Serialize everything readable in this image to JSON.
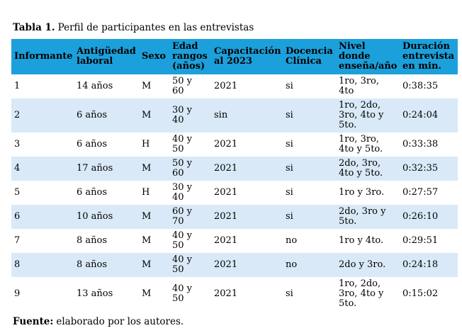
{
  "title": {
    "label": "Tabla 1.",
    "text": "Perfil de participantes en las entrevistas"
  },
  "colors": {
    "header_bg": "#1CA0DB",
    "alt_row_bg": "#D9E9F7",
    "text": "#000000",
    "page_bg": "#FFFFFF"
  },
  "table": {
    "columns": [
      "Informante",
      "Antigüedad\nlaboral",
      "Sexo",
      "Edad\nrangos\n(años)",
      "Capacitación\nal 2023",
      "Docencia\nClínica",
      "Nivel\ndonde\nenseña/año",
      "Duración\nentrevista\nen min."
    ],
    "rows": [
      [
        "1",
        "14 años",
        "M",
        "50 y\n60",
        "2021",
        "si",
        "1ro, 3ro,\n4to",
        "0:38:35"
      ],
      [
        "2",
        "6 años",
        "M",
        "30 y\n40",
        "sin",
        "si",
        "1ro, 2do,\n3ro, 4to y\n5to.",
        "0:24:04"
      ],
      [
        "3",
        "6 años",
        "H",
        "40 y\n50",
        "2021",
        "si",
        "1ro, 3ro,\n4to y 5to.",
        "0:33:38"
      ],
      [
        "4",
        "17 años",
        "M",
        "50 y\n60",
        "2021",
        "si",
        "2do, 3ro,\n4to y 5to.",
        "0:32:35"
      ],
      [
        "5",
        "6 años",
        "H",
        "30 y\n40",
        "2021",
        "si",
        "1ro y 3ro.",
        "0:27:57"
      ],
      [
        "6",
        "10 años",
        "M",
        "60 y\n70",
        "2021",
        "si",
        "2do, 3ro y\n5to.",
        "0:26:10"
      ],
      [
        "7",
        "8 años",
        "M",
        "40 y\n50",
        "2021",
        "no",
        "1ro y 4to.",
        "0:29:51"
      ],
      [
        "8",
        "8 años",
        "M",
        "40 y\n50",
        "2021",
        "no",
        "2do y 3ro.",
        "0:24:18"
      ],
      [
        "9",
        "13 años",
        "M",
        "40 y\n50",
        "2021",
        "si",
        "1ro, 2do,\n3ro, 4to y\n5to.",
        "0:15:02"
      ]
    ]
  },
  "source": {
    "label": "Fuente:",
    "text": "elaborado por los autores."
  }
}
